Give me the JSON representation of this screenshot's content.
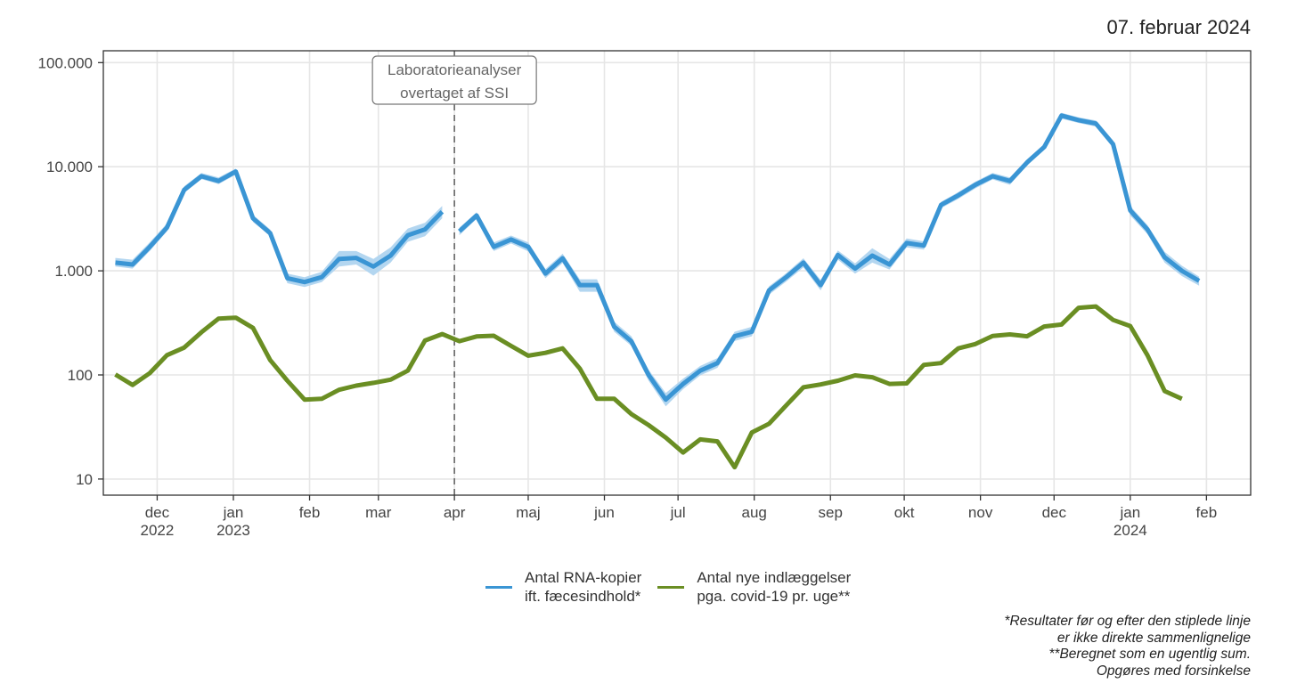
{
  "date_label": "07. februar 2024",
  "legend": {
    "rna": {
      "line1": "Antal RNA-kopier",
      "line2": "ift. fæcesindhold*"
    },
    "hosp": {
      "line1": "Antal nye indlæggelser",
      "line2": "pga. covid-19 pr. uge**"
    }
  },
  "footnotes": {
    "line1": "*Resultater før og efter den stiplede linje",
    "line2": "er ikke direkte sammenlignelige",
    "line3": "**Beregnet som en ugentlig sum.",
    "line4": "Opgøres med forsinkelse"
  },
  "colors": {
    "rna": "#3a95d4",
    "rna_band": "#b3d6f0",
    "hosp": "#6a8e23",
    "grid": "#e6e6e6",
    "annotation": "#777777"
  },
  "chart_data": {
    "type": "line",
    "y_scale": "log10",
    "ylim": [
      7,
      130000
    ],
    "y_ticks": [
      {
        "value": 10,
        "label": "10"
      },
      {
        "value": 100,
        "label": "100"
      },
      {
        "value": 1000,
        "label": "1.000"
      },
      {
        "value": 10000,
        "label": "10.000"
      },
      {
        "value": 100000,
        "label": "100.000"
      }
    ],
    "x_unit": "weeks since 2022-11-14",
    "xlim": [
      -0.7,
      66
    ],
    "x_ticks": [
      {
        "week": 2.43,
        "line1": "dec",
        "line2": "2022"
      },
      {
        "week": 6.86,
        "line1": "jan",
        "line2": "2023"
      },
      {
        "week": 11.29,
        "line1": "feb",
        "line2": ""
      },
      {
        "week": 15.29,
        "line1": "mar",
        "line2": ""
      },
      {
        "week": 19.71,
        "line1": "apr",
        "line2": ""
      },
      {
        "week": 24.0,
        "line1": "maj",
        "line2": ""
      },
      {
        "week": 28.43,
        "line1": "jun",
        "line2": ""
      },
      {
        "week": 32.71,
        "line1": "jul",
        "line2": ""
      },
      {
        "week": 37.14,
        "line1": "aug",
        "line2": ""
      },
      {
        "week": 41.57,
        "line1": "sep",
        "line2": ""
      },
      {
        "week": 45.86,
        "line1": "okt",
        "line2": ""
      },
      {
        "week": 50.29,
        "line1": "nov",
        "line2": ""
      },
      {
        "week": 54.57,
        "line1": "dec",
        "line2": ""
      },
      {
        "week": 59.0,
        "line1": "jan",
        "line2": "2024"
      },
      {
        "week": 63.43,
        "line1": "feb",
        "line2": ""
      }
    ],
    "annotation": {
      "week": 19.71,
      "line1": "Laboratorieanalyser",
      "line2": "overtaget af SSI"
    },
    "series": [
      {
        "name": "Antal RNA-kopier ift. fæcesindhold*",
        "segments": [
          {
            "x": [
              0,
              1,
              2,
              3,
              4,
              5,
              6,
              7,
              8,
              9,
              10,
              11,
              12,
              13,
              14,
              15,
              16,
              17,
              18,
              19
            ],
            "y": [
              1200,
              1150,
              1700,
              2600,
              6000,
              8100,
              7300,
              9000,
              3200,
              2300,
              850,
              780,
              870,
              1300,
              1330,
              1100,
              1400,
              2200,
              2500,
              3700
            ],
            "lower": [
              1100,
              1050,
              1550,
              2400,
              5600,
              7600,
              6800,
              8400,
              2950,
              2150,
              760,
              700,
              780,
              1100,
              1150,
              900,
              1200,
              1900,
              2150,
              3200
            ],
            "upper": [
              1330,
              1280,
              1880,
              2850,
              6500,
              8700,
              7900,
              9600,
              3450,
              2500,
              940,
              870,
              980,
              1550,
              1550,
              1300,
              1680,
              2550,
              2900,
              4200
            ]
          },
          {
            "x": [
              20,
              21,
              22,
              23,
              24,
              25,
              26,
              27,
              28,
              29,
              30,
              31,
              32,
              33,
              34,
              35,
              36,
              37,
              38,
              39,
              40,
              41,
              42,
              43,
              44,
              45,
              46,
              47,
              48,
              49,
              50,
              51,
              52,
              53,
              54,
              55,
              56,
              57,
              58,
              59,
              60,
              61,
              62,
              63
            ],
            "y": [
              2400,
              3400,
              1700,
              2000,
              1700,
              940,
              1320,
              730,
              730,
              290,
              210,
              100,
              58,
              82,
              110,
              130,
              235,
              260,
              650,
              870,
              1200,
              730,
              1420,
              1050,
              1400,
              1150,
              1850,
              1750,
              4300,
              5300,
              6700,
              8100,
              7300,
              11000,
              15500,
              31000,
              28000,
              26000,
              16500,
              3800,
              2500,
              1350,
              1000,
              800
            ],
            "lower": [
              2200,
              3150,
              1550,
              1830,
              1540,
              850,
              1190,
              630,
              630,
              260,
              190,
              88,
              50,
              73,
              99,
              117,
              212,
              235,
              590,
              790,
              1080,
              650,
              1280,
              940,
              1200,
              1030,
              1680,
              1600,
              4000,
              4900,
              6200,
              7550,
              6700,
              10300,
              14600,
              29000,
              26300,
              24300,
              15200,
              3400,
              2250,
              1200,
              890,
              720
            ],
            "upper": [
              2600,
              3650,
              1870,
              2180,
              1880,
              1040,
              1460,
              830,
              830,
              325,
              235,
              112,
              67,
              92,
              122,
              145,
              260,
              290,
              710,
              950,
              1320,
              820,
              1570,
              1180,
              1650,
              1300,
              2050,
              1920,
              4600,
              5700,
              7200,
              8700,
              7900,
              11800,
              16400,
              33000,
              29800,
              27800,
              17900,
              4200,
              2750,
              1520,
              1120,
              880
            ]
          }
        ]
      },
      {
        "name": "Antal nye indlæggelser pga. covid-19 pr. uge**",
        "segments": [
          {
            "x": [
              0,
              1,
              2,
              3,
              4,
              5,
              6,
              7,
              8,
              9,
              10,
              11,
              12,
              13,
              14,
              15,
              16,
              17,
              18,
              19,
              20,
              21,
              22,
              23,
              24,
              25,
              26,
              27,
              28,
              29,
              30,
              31,
              32,
              33,
              34,
              35,
              36,
              37,
              38,
              39,
              40,
              41,
              42,
              43,
              44,
              45,
              46,
              47,
              48,
              49,
              50,
              51,
              52,
              53,
              54,
              55,
              56,
              57,
              58,
              59,
              60,
              61,
              62
            ],
            "y": [
              101,
              80,
              104,
              155,
              183,
              257,
              348,
              355,
              283,
              139,
              88,
              58,
              59,
              72,
              79,
              84,
              90,
              110,
              214,
              247,
              211,
              234,
              238,
              190,
              153,
              163,
              180,
              115,
              59,
              59,
              42,
              33,
              25,
              18,
              24,
              23,
              13,
              28,
              34,
              51,
              76,
              81,
              88,
              99,
              95,
              82,
              83,
              125,
              130,
              180,
              198,
              237,
              245,
              235,
              292,
              305,
              442,
              455,
              338,
              295,
              155,
              70,
              59
            ]
          }
        ]
      }
    ]
  }
}
